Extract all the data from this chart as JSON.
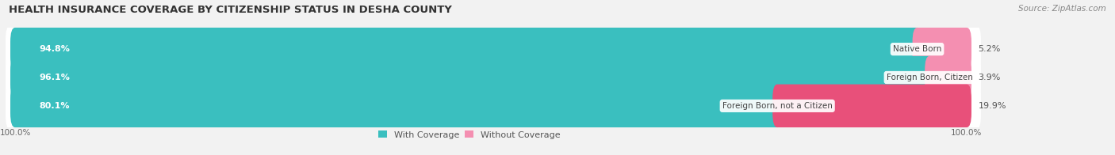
{
  "title": "HEALTH INSURANCE COVERAGE BY CITIZENSHIP STATUS IN DESHA COUNTY",
  "source": "Source: ZipAtlas.com",
  "categories": [
    "Native Born",
    "Foreign Born, Citizen",
    "Foreign Born, not a Citizen"
  ],
  "with_coverage": [
    94.8,
    96.1,
    80.1
  ],
  "without_coverage": [
    5.2,
    3.9,
    19.9
  ],
  "color_with": "#3abfbf",
  "color_without": "#f48fb1",
  "color_without_3": "#e8507a",
  "background_color": "#f2f2f2",
  "bar_bg_color": "#e8e8e8",
  "title_fontsize": 9.5,
  "source_fontsize": 7.5,
  "label_fontsize": 8,
  "cat_fontsize": 7.5,
  "bar_height": 0.52,
  "legend_label_with": "With Coverage",
  "legend_label_without": "Without Coverage",
  "xlim_max": 115,
  "ylim_min": -0.75,
  "ylim_max": 2.75
}
